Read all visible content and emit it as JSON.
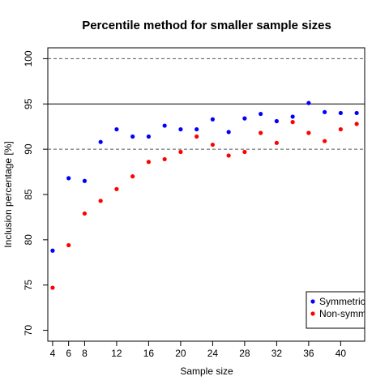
{
  "chart_data": {
    "type": "scatter",
    "title": "Percentile method for smaller sample sizes",
    "xlabel": "Sample size",
    "ylabel": "Inclusion percentage [%]",
    "xlim": [
      3.4,
      43
    ],
    "ylim": [
      68.8,
      101.2
    ],
    "x_ticks": [
      4,
      6,
      8,
      12,
      16,
      20,
      24,
      28,
      32,
      36,
      40
    ],
    "y_ticks": [
      70,
      75,
      80,
      85,
      90,
      95,
      100
    ],
    "x": [
      4,
      6,
      8,
      10,
      12,
      14,
      16,
      18,
      20,
      22,
      24,
      26,
      28,
      30,
      32,
      34,
      36,
      38,
      40,
      42
    ],
    "series": [
      {
        "name": "Symmetric",
        "color": "#0000ff",
        "values": [
          78.8,
          86.8,
          86.5,
          90.8,
          92.2,
          91.4,
          91.4,
          92.6,
          92.2,
          92.2,
          93.3,
          91.9,
          93.4,
          93.9,
          93.1,
          93.6,
          95.1,
          94.1,
          94.0,
          94.0
        ]
      },
      {
        "name": "Non-symm",
        "color": "#ff0000",
        "values": [
          74.7,
          79.4,
          82.9,
          84.3,
          85.6,
          87.0,
          88.6,
          88.9,
          89.7,
          91.4,
          90.5,
          89.3,
          89.7,
          91.8,
          90.7,
          93.0,
          91.8,
          90.9,
          92.2,
          92.8
        ]
      }
    ],
    "reference_lines": [
      {
        "y": 100,
        "style": "dashed"
      },
      {
        "y": 95,
        "style": "solid"
      },
      {
        "y": 90,
        "style": "dashed"
      }
    ],
    "grid": false,
    "legend_position": "bottom-right"
  }
}
